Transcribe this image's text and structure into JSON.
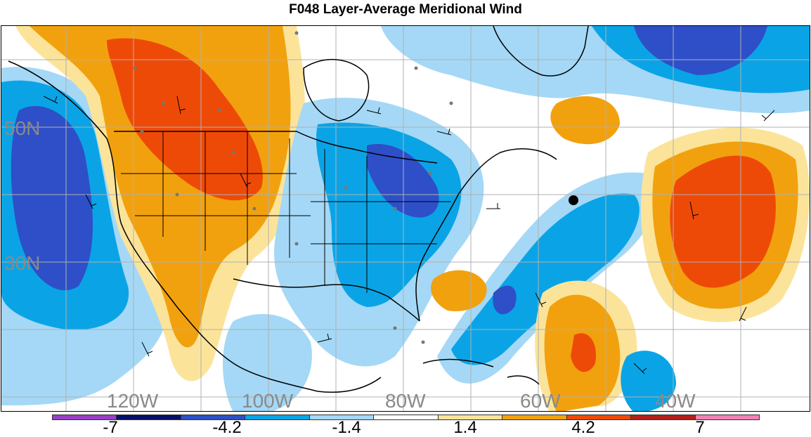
{
  "title": "F048 Layer-Average Meridional Wind",
  "lat_labels": [
    "50N",
    "30N"
  ],
  "lon_labels": [
    "120W",
    "100W",
    "80W",
    "60W",
    "40W"
  ],
  "colorbar": {
    "labels": [
      "-7",
      "-4.2",
      "-1.4",
      "1.4",
      "4.2",
      "7"
    ],
    "colors": [
      "#9a3fc8",
      "#05106a",
      "#2e4fc7",
      "#0aa4e6",
      "#a4d8f6",
      "#ffffff",
      "#fbe49a",
      "#f2a10e",
      "#ee4a07",
      "#b51f1a",
      "#f282b4"
    ]
  },
  "palette": {
    "strong_south": "#2e4fc7",
    "south": "#0aa4e6",
    "weak_south": "#a4d8f6",
    "weak_north": "#fbe49a",
    "north": "#f2a10e",
    "strong_north": "#ee4a07",
    "extreme_north": "#b51f1a"
  }
}
